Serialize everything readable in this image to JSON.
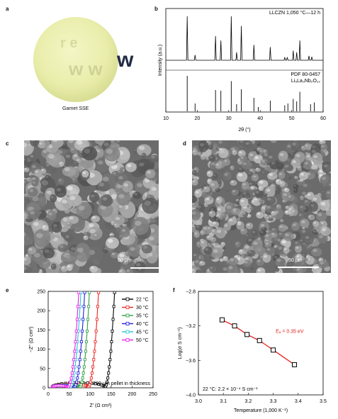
{
  "panels": {
    "a": {
      "letter": "a",
      "caption": "Garnet SSE",
      "logo_text": "w w w"
    },
    "b": {
      "letter": "b",
      "top_label": "LLCZN 1,050 °C—12 h",
      "ref_label": "PDF 80-0457",
      "ref_formula": "Li₅La₃Nb₂O₁₂"
    },
    "c": {
      "letter": "c",
      "scale": "50 μm"
    },
    "d": {
      "letter": "d",
      "scale": "50 μm"
    },
    "e": {
      "letter": "e",
      "note": "200 μm pellet in thickness"
    },
    "f": {
      "letter": "f",
      "ea_label": "Eₐ = 0.35 eV",
      "note": "22 °C: 2.2 × 10⁻⁴ S cm⁻¹"
    }
  },
  "colors": {
    "black": "#000000",
    "red": "#e8251f",
    "green": "#2ea043",
    "blue": "#1f1fd6",
    "cyan": "#26c6da",
    "magenta": "#e81ee8",
    "fit_red": "#e0201b"
  },
  "chart_data": [
    {
      "type": "line",
      "id": "b",
      "xlabel": "2θ (°)",
      "ylabel": "Intensity (a.u.)",
      "xlim": [
        10,
        60
      ],
      "xticks": [
        10,
        20,
        30,
        40,
        50,
        60
      ],
      "series": [
        {
          "name": "LLCZN 1,050 °C—12 h",
          "peaks": [
            [
              16.8,
              1.0
            ],
            [
              19.3,
              0.12
            ],
            [
              25.8,
              0.55
            ],
            [
              27.5,
              0.45
            ],
            [
              30.8,
              1.0
            ],
            [
              32.5,
              0.18
            ],
            [
              34.0,
              0.78
            ],
            [
              38.0,
              0.35
            ],
            [
              43.2,
              0.3
            ],
            [
              47.8,
              0.07
            ],
            [
              48.6,
              0.07
            ],
            [
              50.5,
              0.22
            ],
            [
              51.6,
              0.18
            ],
            [
              52.6,
              0.45
            ],
            [
              55.5,
              0.1
            ],
            [
              56.4,
              0.08
            ]
          ]
        },
        {
          "name": "PDF 80-0457",
          "peaks": [
            [
              16.8,
              1.0
            ],
            [
              19.3,
              0.22
            ],
            [
              25.8,
              0.6
            ],
            [
              27.5,
              0.58
            ],
            [
              30.8,
              0.85
            ],
            [
              32.5,
              0.2
            ],
            [
              34.0,
              0.62
            ],
            [
              38.0,
              0.38
            ],
            [
              39.4,
              0.12
            ],
            [
              43.2,
              0.3
            ],
            [
              47.8,
              0.17
            ],
            [
              48.8,
              0.22
            ],
            [
              50.5,
              0.35
            ],
            [
              51.6,
              0.28
            ],
            [
              52.6,
              0.55
            ],
            [
              56.0,
              0.2
            ],
            [
              57.2,
              0.25
            ]
          ]
        }
      ]
    },
    {
      "type": "line",
      "id": "e",
      "xlabel": "Z′ (Ω cm²)",
      "ylabel": "−Z″ (Ω cm²)",
      "xlim": [
        0,
        250
      ],
      "ylim": [
        0,
        250
      ],
      "xticks": [
        0,
        50,
        100,
        150,
        200,
        250
      ],
      "yticks": [
        0,
        50,
        100,
        150,
        200,
        250
      ],
      "series": [
        {
          "name": "22 °C",
          "color": "black",
          "r0": 10,
          "r1": 135,
          "tail_x": 150
        },
        {
          "name": "30 °C",
          "color": "red",
          "r0": 10,
          "r1": 95,
          "tail_x": 112
        },
        {
          "name": "35 °C",
          "color": "green",
          "r0": 10,
          "r1": 75,
          "tail_x": 90
        },
        {
          "name": "40 °C",
          "color": "blue",
          "r0": 10,
          "r1": 62,
          "tail_x": 79
        },
        {
          "name": "45 °C",
          "color": "cyan",
          "r0": 10,
          "r1": 52,
          "tail_x": 70
        },
        {
          "name": "50 °C",
          "color": "magenta",
          "r0": 10,
          "r1": 47,
          "tail_x": 65
        }
      ]
    },
    {
      "type": "scatter",
      "id": "f",
      "xlabel": "Temperature (1,000 K⁻¹)",
      "ylabel": "Log(σ S cm⁻¹)",
      "xlim": [
        3.0,
        3.5
      ],
      "ylim": [
        -4.0,
        -2.8
      ],
      "xticks": [
        3.0,
        3.1,
        3.2,
        3.3,
        3.4,
        3.5
      ],
      "yticks": [
        -2.8,
        -3.2,
        -3.6,
        -4.0
      ],
      "x": [
        3.095,
        3.145,
        3.195,
        3.245,
        3.3,
        3.385
      ],
      "y": [
        -3.13,
        -3.2,
        -3.3,
        -3.37,
        -3.48,
        -3.65
      ]
    }
  ]
}
